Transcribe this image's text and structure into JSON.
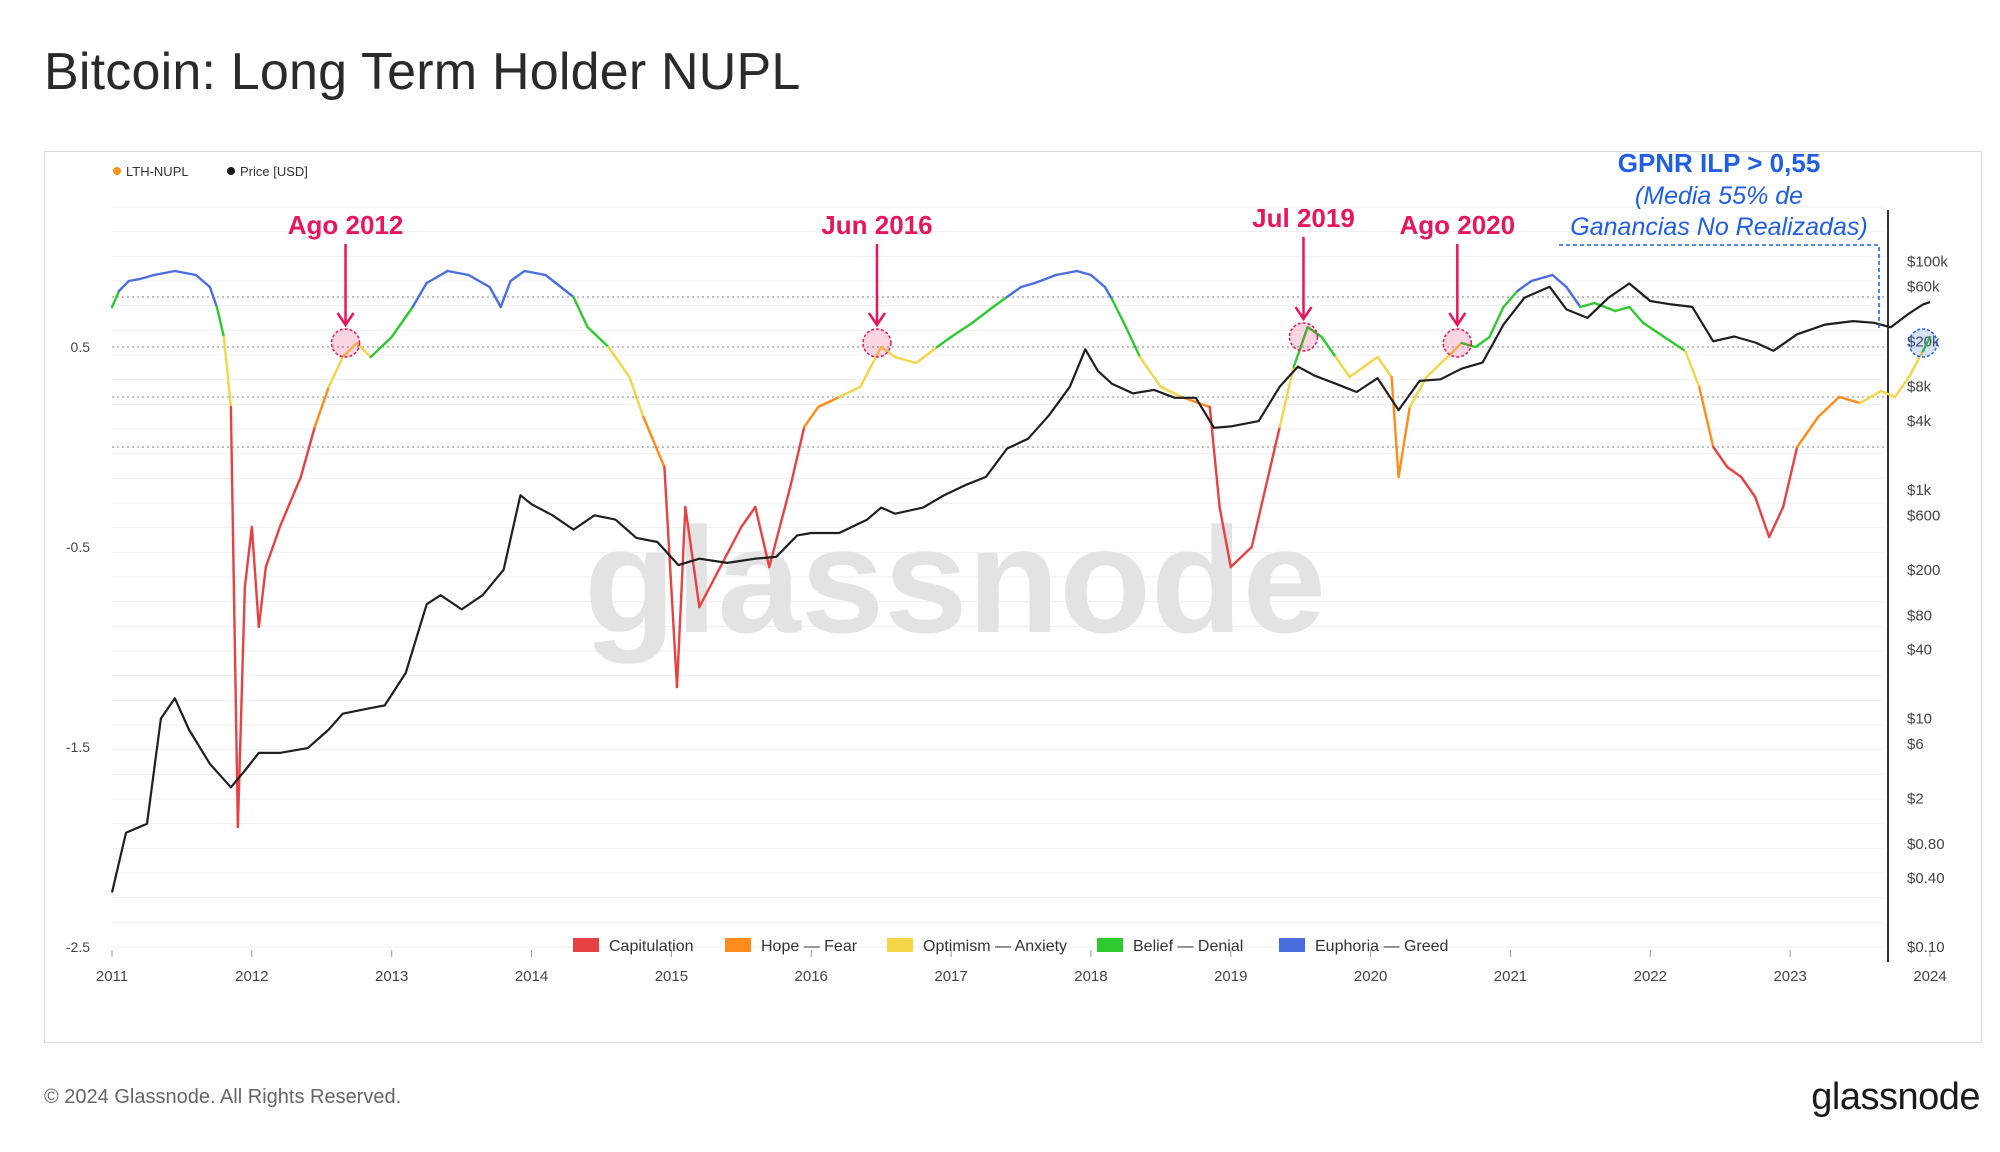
{
  "title": "Bitcoin: Long Term Holder NUPL",
  "footer": {
    "copyright": "© 2024 Glassnode. All Rights Reserved.",
    "logo": "glassnode"
  },
  "watermark": "glassnode",
  "chart_data": {
    "type": "line",
    "legend_top": [
      {
        "label": "LTH-NUPL",
        "color": "#f7931a"
      },
      {
        "label": "Price [USD]",
        "color": "#1a1a1a"
      }
    ],
    "legend_bottom": [
      {
        "label": "Capitulation",
        "color": "#e84142"
      },
      {
        "label": "Hope — Fear",
        "color": "#ff8c1a"
      },
      {
        "label": "Optimism — Anxiety",
        "color": "#f5d547"
      },
      {
        "label": "Belief — Denial",
        "color": "#2ec92e"
      },
      {
        "label": "Euphoria — Greed",
        "color": "#4a6ee0"
      }
    ],
    "x_ticks": [
      "2011",
      "2012",
      "2013",
      "2014",
      "2015",
      "2016",
      "2017",
      "2018",
      "2019",
      "2020",
      "2021",
      "2022",
      "2023",
      "2024"
    ],
    "y_left_ticks": [
      {
        "label": "0.5",
        "value": 0.5
      },
      {
        "label": "-0.5",
        "value": -0.5
      },
      {
        "label": "-1.5",
        "value": -1.5
      },
      {
        "label": "-2.5",
        "value": -2.5
      }
    ],
    "y_left_range": [
      -2.5,
      1.2
    ],
    "y_right_ticks": [
      {
        "label": "$100k",
        "value": 100000
      },
      {
        "label": "$60k",
        "value": 60000
      },
      {
        "label": "$20k",
        "value": 20000
      },
      {
        "label": "$8k",
        "value": 8000
      },
      {
        "label": "$4k",
        "value": 4000
      },
      {
        "label": "$1k",
        "value": 1000
      },
      {
        "label": "$600",
        "value": 600
      },
      {
        "label": "$200",
        "value": 200
      },
      {
        "label": "$80",
        "value": 80
      },
      {
        "label": "$40",
        "value": 40
      },
      {
        "label": "$10",
        "value": 10
      },
      {
        "label": "$6",
        "value": 6
      },
      {
        "label": "$2",
        "value": 2
      },
      {
        "label": "$0.80",
        "value": 0.8
      },
      {
        "label": "$0.40",
        "value": 0.4
      },
      {
        "label": "$0.10",
        "value": 0.1
      }
    ],
    "y_right_scale": "log",
    "zone_lines": [
      0.75,
      0.5,
      0.25,
      0.0
    ],
    "lth_nupl": [
      [
        2011.0,
        0.7
      ],
      [
        2011.05,
        0.78
      ],
      [
        2011.12,
        0.83
      ],
      [
        2011.2,
        0.84
      ],
      [
        2011.3,
        0.86
      ],
      [
        2011.45,
        0.88
      ],
      [
        2011.6,
        0.86
      ],
      [
        2011.7,
        0.8
      ],
      [
        2011.75,
        0.7
      ],
      [
        2011.8,
        0.55
      ],
      [
        2011.85,
        0.2
      ],
      [
        2011.9,
        -1.9
      ],
      [
        2011.95,
        -0.7
      ],
      [
        2012.0,
        -0.4
      ],
      [
        2012.05,
        -0.9
      ],
      [
        2012.1,
        -0.6
      ],
      [
        2012.2,
        -0.4
      ],
      [
        2012.35,
        -0.15
      ],
      [
        2012.45,
        0.1
      ],
      [
        2012.55,
        0.3
      ],
      [
        2012.65,
        0.45
      ],
      [
        2012.75,
        0.52
      ],
      [
        2012.85,
        0.45
      ],
      [
        2013.0,
        0.55
      ],
      [
        2013.15,
        0.7
      ],
      [
        2013.25,
        0.82
      ],
      [
        2013.4,
        0.88
      ],
      [
        2013.55,
        0.86
      ],
      [
        2013.7,
        0.8
      ],
      [
        2013.78,
        0.7
      ],
      [
        2013.85,
        0.83
      ],
      [
        2013.95,
        0.88
      ],
      [
        2014.1,
        0.86
      ],
      [
        2014.3,
        0.75
      ],
      [
        2014.4,
        0.6
      ],
      [
        2014.55,
        0.5
      ],
      [
        2014.7,
        0.35
      ],
      [
        2014.8,
        0.15
      ],
      [
        2014.95,
        -0.1
      ],
      [
        2015.04,
        -1.2
      ],
      [
        2015.1,
        -0.3
      ],
      [
        2015.2,
        -0.8
      ],
      [
        2015.35,
        -0.6
      ],
      [
        2015.5,
        -0.4
      ],
      [
        2015.6,
        -0.3
      ],
      [
        2015.7,
        -0.6
      ],
      [
        2015.85,
        -0.2
      ],
      [
        2015.95,
        0.1
      ],
      [
        2016.05,
        0.2
      ],
      [
        2016.2,
        0.25
      ],
      [
        2016.35,
        0.3
      ],
      [
        2016.5,
        0.5
      ],
      [
        2016.6,
        0.45
      ],
      [
        2016.75,
        0.42
      ],
      [
        2016.9,
        0.5
      ],
      [
        2017.0,
        0.55
      ],
      [
        2017.15,
        0.62
      ],
      [
        2017.3,
        0.7
      ],
      [
        2017.4,
        0.75
      ],
      [
        2017.5,
        0.8
      ],
      [
        2017.6,
        0.82
      ],
      [
        2017.75,
        0.86
      ],
      [
        2017.9,
        0.88
      ],
      [
        2018.0,
        0.86
      ],
      [
        2018.1,
        0.8
      ],
      [
        2018.15,
        0.74
      ],
      [
        2018.25,
        0.6
      ],
      [
        2018.35,
        0.45
      ],
      [
        2018.5,
        0.3
      ],
      [
        2018.65,
        0.25
      ],
      [
        2018.85,
        0.2
      ],
      [
        2018.92,
        -0.3
      ],
      [
        2019.0,
        -0.6
      ],
      [
        2019.15,
        -0.5
      ],
      [
        2019.25,
        -0.2
      ],
      [
        2019.35,
        0.1
      ],
      [
        2019.45,
        0.4
      ],
      [
        2019.55,
        0.6
      ],
      [
        2019.65,
        0.55
      ],
      [
        2019.75,
        0.45
      ],
      [
        2019.85,
        0.35
      ],
      [
        2019.95,
        0.4
      ],
      [
        2020.05,
        0.45
      ],
      [
        2020.15,
        0.35
      ],
      [
        2020.2,
        -0.15
      ],
      [
        2020.28,
        0.2
      ],
      [
        2020.4,
        0.35
      ],
      [
        2020.55,
        0.45
      ],
      [
        2020.65,
        0.52
      ],
      [
        2020.75,
        0.5
      ],
      [
        2020.85,
        0.55
      ],
      [
        2020.95,
        0.7
      ],
      [
        2021.05,
        0.78
      ],
      [
        2021.15,
        0.83
      ],
      [
        2021.3,
        0.86
      ],
      [
        2021.4,
        0.8
      ],
      [
        2021.5,
        0.7
      ],
      [
        2021.6,
        0.72
      ],
      [
        2021.75,
        0.68
      ],
      [
        2021.85,
        0.7
      ],
      [
        2021.95,
        0.62
      ],
      [
        2022.1,
        0.55
      ],
      [
        2022.25,
        0.48
      ],
      [
        2022.35,
        0.3
      ],
      [
        2022.45,
        0.0
      ],
      [
        2022.55,
        -0.1
      ],
      [
        2022.65,
        -0.15
      ],
      [
        2022.75,
        -0.25
      ],
      [
        2022.85,
        -0.45
      ],
      [
        2022.95,
        -0.3
      ],
      [
        2023.05,
        0.0
      ],
      [
        2023.2,
        0.15
      ],
      [
        2023.35,
        0.25
      ],
      [
        2023.5,
        0.22
      ],
      [
        2023.65,
        0.28
      ],
      [
        2023.75,
        0.25
      ],
      [
        2023.85,
        0.35
      ],
      [
        2023.95,
        0.48
      ],
      [
        2024.0,
        0.55
      ]
    ],
    "price_usd": [
      [
        2011.0,
        0.3
      ],
      [
        2011.1,
        1.0
      ],
      [
        2011.25,
        1.2
      ],
      [
        2011.35,
        10
      ],
      [
        2011.45,
        15
      ],
      [
        2011.55,
        8
      ],
      [
        2011.7,
        4
      ],
      [
        2011.85,
        2.5
      ],
      [
        2011.95,
        3.5
      ],
      [
        2012.05,
        5
      ],
      [
        2012.2,
        5
      ],
      [
        2012.4,
        5.5
      ],
      [
        2012.55,
        8
      ],
      [
        2012.65,
        11
      ],
      [
        2012.8,
        12
      ],
      [
        2012.95,
        13
      ],
      [
        2013.1,
        25
      ],
      [
        2013.25,
        100
      ],
      [
        2013.35,
        120
      ],
      [
        2013.5,
        90
      ],
      [
        2013.65,
        120
      ],
      [
        2013.8,
        200
      ],
      [
        2013.92,
        900
      ],
      [
        2014.0,
        750
      ],
      [
        2014.15,
        600
      ],
      [
        2014.3,
        450
      ],
      [
        2014.45,
        600
      ],
      [
        2014.6,
        550
      ],
      [
        2014.75,
        380
      ],
      [
        2014.9,
        350
      ],
      [
        2015.05,
        220
      ],
      [
        2015.2,
        250
      ],
      [
        2015.4,
        230
      ],
      [
        2015.6,
        250
      ],
      [
        2015.75,
        260
      ],
      [
        2015.9,
        400
      ],
      [
        2016.0,
        420
      ],
      [
        2016.2,
        420
      ],
      [
        2016.4,
        550
      ],
      [
        2016.5,
        700
      ],
      [
        2016.6,
        620
      ],
      [
        2016.8,
        700
      ],
      [
        2016.95,
        900
      ],
      [
        2017.1,
        1100
      ],
      [
        2017.25,
        1300
      ],
      [
        2017.4,
        2300
      ],
      [
        2017.55,
        2800
      ],
      [
        2017.7,
        4500
      ],
      [
        2017.85,
        8000
      ],
      [
        2017.96,
        17000
      ],
      [
        2018.05,
        11000
      ],
      [
        2018.15,
        8500
      ],
      [
        2018.3,
        7000
      ],
      [
        2018.45,
        7500
      ],
      [
        2018.6,
        6400
      ],
      [
        2018.75,
        6400
      ],
      [
        2018.88,
        3500
      ],
      [
        2019.0,
        3600
      ],
      [
        2019.2,
        4000
      ],
      [
        2019.35,
        8000
      ],
      [
        2019.48,
        12000
      ],
      [
        2019.6,
        10000
      ],
      [
        2019.75,
        8500
      ],
      [
        2019.9,
        7200
      ],
      [
        2020.05,
        9500
      ],
      [
        2020.2,
        5000
      ],
      [
        2020.35,
        9000
      ],
      [
        2020.5,
        9300
      ],
      [
        2020.65,
        11500
      ],
      [
        2020.8,
        13000
      ],
      [
        2020.95,
        28000
      ],
      [
        2021.1,
        48000
      ],
      [
        2021.28,
        60000
      ],
      [
        2021.4,
        38000
      ],
      [
        2021.55,
        32000
      ],
      [
        2021.7,
        48000
      ],
      [
        2021.85,
        64000
      ],
      [
        2022.0,
        45000
      ],
      [
        2022.15,
        42000
      ],
      [
        2022.3,
        40000
      ],
      [
        2022.45,
        20000
      ],
      [
        2022.6,
        22000
      ],
      [
        2022.75,
        19500
      ],
      [
        2022.88,
        16500
      ],
      [
        2023.05,
        23000
      ],
      [
        2023.25,
        28000
      ],
      [
        2023.45,
        30000
      ],
      [
        2023.6,
        29000
      ],
      [
        2023.72,
        26500
      ],
      [
        2023.85,
        35000
      ],
      [
        2023.95,
        42000
      ],
      [
        2024.0,
        44000
      ]
    ],
    "annotations": [
      {
        "label": "Ago 2012",
        "x": 2012.67,
        "y": 0.52,
        "color": "#e8155f"
      },
      {
        "label": "Jun 2016",
        "x": 2016.47,
        "y": 0.52,
        "color": "#e8155f"
      },
      {
        "label": "Jul 2019",
        "x": 2019.52,
        "y": 0.55,
        "color": "#e8155f"
      },
      {
        "label": "Ago 2020",
        "x": 2020.62,
        "y": 0.52,
        "color": "#e8155f"
      }
    ],
    "callout": {
      "line1": "GPNR ILP > 0,55",
      "line2": "(Media 55% de",
      "line3": "Ganancias No Realizadas)",
      "color": "#1f5ee6",
      "x": 2023.95,
      "y": 0.52
    }
  }
}
